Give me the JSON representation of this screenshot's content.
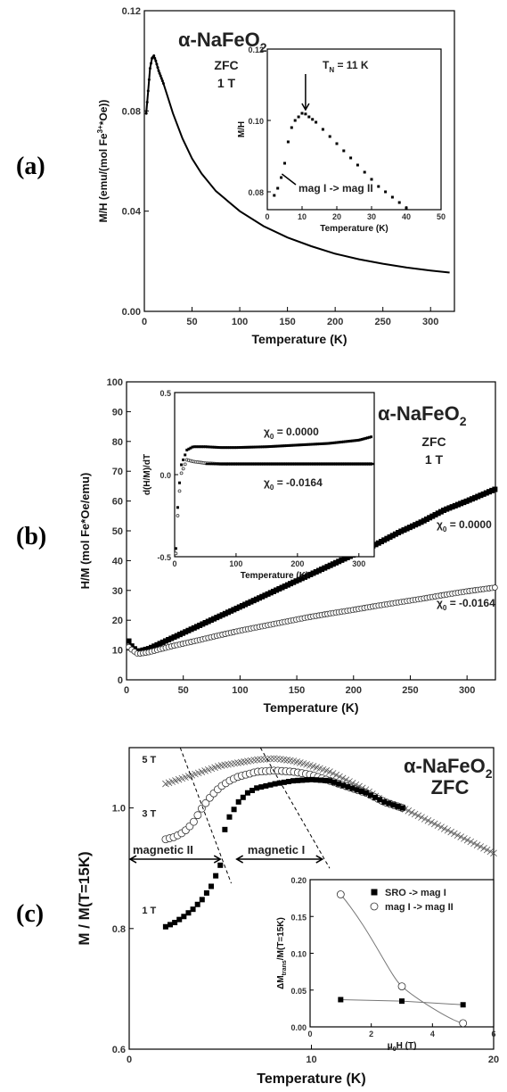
{
  "chart_data": [
    {
      "panel": "(a)",
      "type": "line",
      "title": "α-NaFeO2",
      "notes": [
        "ZFC",
        "1 T"
      ],
      "xlabel": "Temperature (K)",
      "ylabel": "M/H (emu/(mol Fe3+*Oe))",
      "xlim": [
        0,
        325
      ],
      "ylim": [
        0,
        0.12
      ],
      "xticks": [
        "0",
        "50",
        "100",
        "150",
        "200",
        "250",
        "300"
      ],
      "yticks": [
        "0.00",
        "0.04",
        "0.08",
        "0.12"
      ],
      "series": [
        {
          "x": [
            2,
            4,
            6,
            8,
            10,
            12,
            15,
            20,
            25,
            30,
            40,
            50,
            60,
            75,
            100,
            125,
            150,
            175,
            200,
            225,
            250,
            275,
            300,
            320
          ],
          "y": [
            0.079,
            0.088,
            0.097,
            0.101,
            0.102,
            0.1,
            0.096,
            0.091,
            0.085,
            0.079,
            0.069,
            0.061,
            0.055,
            0.048,
            0.04,
            0.034,
            0.0295,
            0.026,
            0.023,
            0.0208,
            0.019,
            0.0175,
            0.0163,
            0.0155
          ]
        }
      ],
      "inset": {
        "xlabel": "Temperature (K)",
        "ylabel": "M/H",
        "xlim": [
          0,
          50
        ],
        "ylim": [
          0.075,
          0.12
        ],
        "xticks": [
          "0",
          "10",
          "20",
          "30",
          "40",
          "50"
        ],
        "yticks": [
          "0.08",
          "0.10",
          "0.12"
        ],
        "annotations": [
          "T_N = 11 K",
          "mag I -> mag II"
        ],
        "x": [
          2,
          3,
          4,
          5,
          6,
          7,
          8,
          9,
          10,
          11,
          12,
          13,
          14,
          16,
          18,
          20,
          22,
          24,
          26,
          28,
          30,
          32,
          34,
          36,
          38,
          40
        ],
        "y": [
          0.079,
          0.081,
          0.084,
          0.088,
          0.094,
          0.098,
          0.1,
          0.101,
          0.102,
          0.1018,
          0.101,
          0.1003,
          0.0995,
          0.0975,
          0.0955,
          0.0935,
          0.0915,
          0.0895,
          0.0875,
          0.0855,
          0.0835,
          0.0815,
          0.08,
          0.0785,
          0.077,
          0.0755
        ]
      }
    },
    {
      "panel": "(b)",
      "type": "scatter",
      "title": "α-NaFeO2",
      "notes": [
        "ZFC",
        "1 T"
      ],
      "xlabel": "Temperature (K)",
      "ylabel": "H/M (mol Fe*Oe/emu)",
      "xlim": [
        0,
        325
      ],
      "ylim": [
        0,
        100
      ],
      "xticks": [
        "0",
        "50",
        "100",
        "150",
        "200",
        "250",
        "300"
      ],
      "yticks": [
        "0",
        "10",
        "20",
        "30",
        "40",
        "50",
        "60",
        "70",
        "80",
        "90",
        "100"
      ],
      "series": [
        {
          "name": "χ0 = 0.0000",
          "marker": "filled-square",
          "x": [
            2,
            5,
            10,
            20,
            40,
            60,
            80,
            100,
            120,
            140,
            160,
            180,
            200,
            220,
            240,
            260,
            280,
            300,
            325
          ],
          "y": [
            13,
            11,
            9.5,
            10.5,
            14,
            17.5,
            21,
            24.5,
            28,
            31.5,
            35,
            38.5,
            42,
            45.5,
            49.5,
            53,
            57,
            60,
            64
          ]
        },
        {
          "name": "χ0 = -0.0164",
          "marker": "open-circle",
          "x": [
            2,
            5,
            10,
            20,
            40,
            60,
            80,
            100,
            120,
            140,
            160,
            180,
            200,
            220,
            240,
            260,
            280,
            300,
            325
          ],
          "y": [
            11,
            10,
            8.7,
            9.3,
            11.3,
            13,
            14.8,
            16.5,
            18,
            19.5,
            21,
            22.3,
            23.5,
            24.8,
            26,
            27.2,
            28.5,
            29.7,
            31
          ]
        }
      ],
      "inset": {
        "xlabel": "Temperature (K)",
        "ylabel": "d(H/M)/dT",
        "xlim": [
          0,
          325
        ],
        "ylim": [
          -0.5,
          0.5
        ],
        "xticks": [
          "0",
          "100",
          "200",
          "300"
        ],
        "yticks": [
          "-0.5",
          "0.0",
          "0.5"
        ],
        "series": [
          {
            "name": "χ0 = 0.0000",
            "x": [
              2,
              5,
              10,
              20,
              30,
              50,
              75,
              100,
              150,
              200,
              250,
              300,
              320
            ],
            "y": [
              -0.45,
              -0.2,
              0.05,
              0.15,
              0.17,
              0.17,
              0.165,
              0.165,
              0.17,
              0.18,
              0.19,
              0.21,
              0.23
            ]
          },
          {
            "name": "χ0 = -0.0164",
            "x": [
              2,
              5,
              10,
              20,
              30,
              50,
              75,
              100,
              150,
              200,
              250,
              300,
              320
            ],
            "y": [
              -0.48,
              -0.25,
              0.0,
              0.09,
              0.08,
              0.07,
              0.065,
              0.065,
              0.065,
              0.065,
              0.065,
              0.065,
              0.065
            ]
          }
        ]
      }
    },
    {
      "panel": "(c)",
      "type": "scatter",
      "title": "α-NaFeO2",
      "notes": [
        "ZFC"
      ],
      "xlabel": "Temperature (K)",
      "ylabel": "M / M(T=15K)",
      "xlim": [
        0,
        20
      ],
      "ylim": [
        0.6,
        1.1
      ],
      "xticks": [
        "0",
        "10",
        "20"
      ],
      "yticks": [
        "0.6",
        "0.8",
        "1.0"
      ],
      "region_labels": [
        "magnetic II",
        "magnetic I"
      ],
      "series": [
        {
          "name": "5 T",
          "marker": "cross",
          "x": [
            2,
            3,
            4,
            5,
            6,
            7,
            8,
            9,
            10,
            11,
            12,
            13,
            14,
            15,
            16,
            17,
            18,
            19,
            20
          ],
          "y": [
            1.04,
            1.05,
            1.06,
            1.07,
            1.075,
            1.08,
            1.082,
            1.078,
            1.07,
            1.06,
            1.045,
            1.03,
            1.01,
            1.0,
            0.985,
            0.97,
            0.955,
            0.94,
            0.925
          ]
        },
        {
          "name": "3 T",
          "marker": "open-circle",
          "x": [
            2,
            2.5,
            3,
            3.5,
            4,
            4.5,
            5,
            5.5,
            6,
            7,
            8,
            9,
            10,
            11,
            12,
            13,
            14,
            15
          ],
          "y": [
            0.948,
            0.952,
            0.96,
            0.975,
            1.0,
            1.02,
            1.035,
            1.045,
            1.052,
            1.06,
            1.062,
            1.06,
            1.055,
            1.045,
            1.035,
            1.025,
            1.01,
            1.0
          ]
        },
        {
          "name": "1 T",
          "marker": "filled-square",
          "x": [
            2,
            2.5,
            3,
            3.5,
            4,
            4.5,
            5,
            5.2,
            5.5,
            6,
            6.5,
            7,
            8,
            9,
            10,
            11,
            12,
            13,
            14,
            15
          ],
          "y": [
            0.803,
            0.81,
            0.82,
            0.832,
            0.848,
            0.87,
            0.905,
            0.96,
            0.985,
            1.01,
            1.025,
            1.033,
            1.04,
            1.045,
            1.047,
            1.045,
            1.035,
            1.025,
            1.01,
            1.0
          ]
        }
      ],
      "inset": {
        "xlabel": "μ0H (T)",
        "ylabel": "ΔM_trans/M(T=15K)",
        "xlim": [
          0,
          6
        ],
        "ylim": [
          0,
          0.2
        ],
        "xticks": [
          "0",
          "2",
          "4",
          "6"
        ],
        "yticks": [
          "0.00",
          "0.05",
          "0.10",
          "0.15",
          "0.20"
        ],
        "series": [
          {
            "name": "SRO -> mag I",
            "marker": "filled-square",
            "x": [
              1,
              3,
              5
            ],
            "y": [
              0.037,
              0.035,
              0.03
            ]
          },
          {
            "name": "mag I -> mag II",
            "marker": "open-circle",
            "x": [
              1,
              3,
              5
            ],
            "y": [
              0.18,
              0.055,
              0.005
            ]
          }
        ]
      }
    }
  ]
}
